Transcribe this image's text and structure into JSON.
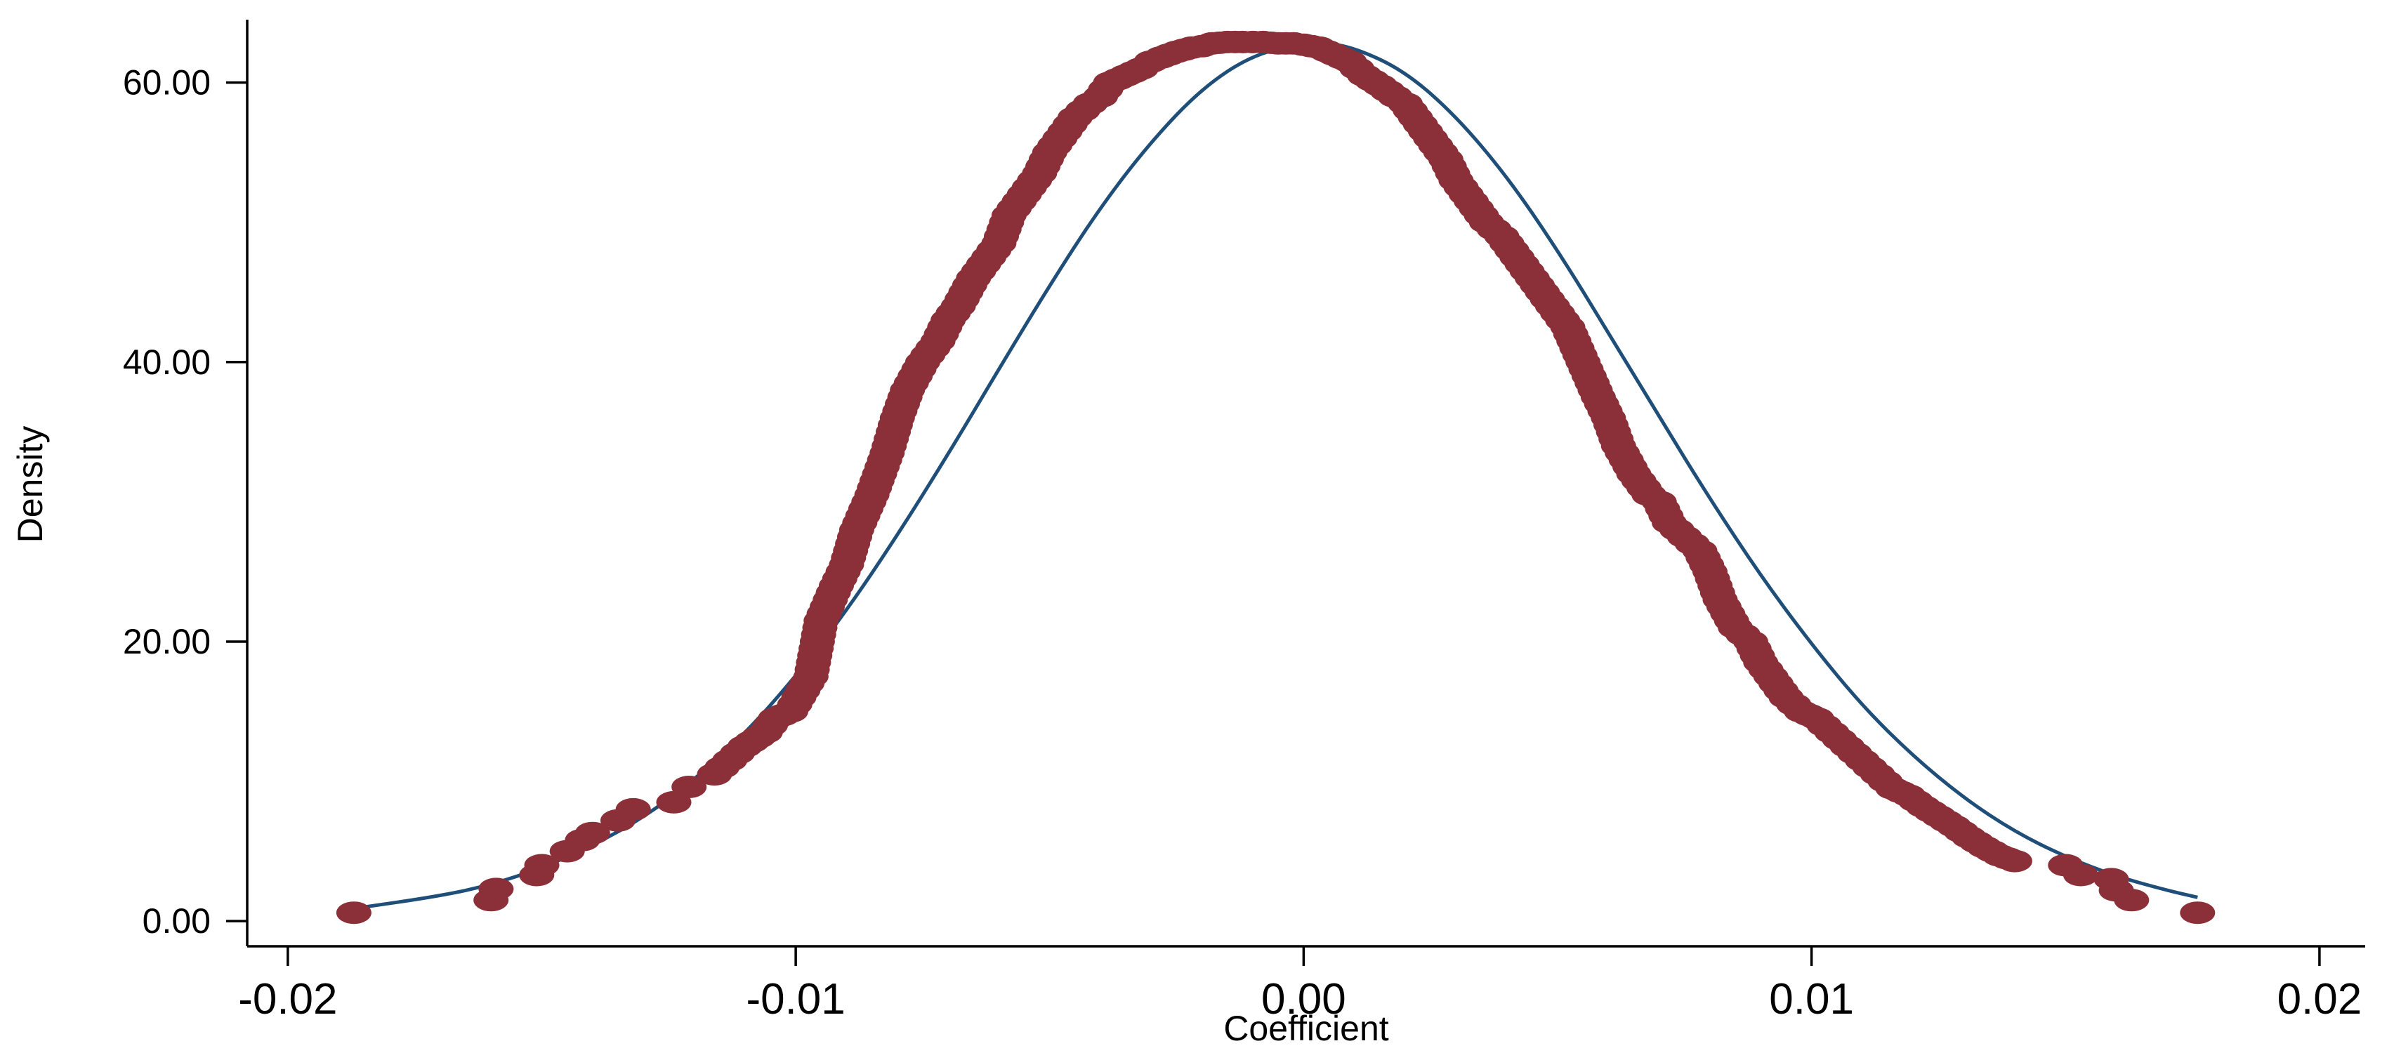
{
  "chart_data": {
    "type": "scatter",
    "xlabel": "Coefficient",
    "ylabel": "Density",
    "xlim": [
      -0.0208,
      0.0209
    ],
    "ylim": [
      -1.8,
      64.5
    ],
    "xticks": [
      -0.02,
      -0.01,
      0.0,
      0.01,
      0.02
    ],
    "xtick_labels": [
      "-0.02",
      "-0.01",
      "0.00",
      "0.01",
      "0.02"
    ],
    "yticks": [
      0,
      20,
      40,
      60
    ],
    "ytick_labels": [
      "0.00",
      "20.00",
      "40.00",
      "60.00"
    ],
    "colors": {
      "density_points": "#8B3038",
      "normal_curve": "#1F4E79"
    },
    "grid": false,
    "legend": "none",
    "series": [
      {
        "style": "markers",
        "x": [
          -0.0187,
          -0.016,
          -0.0159,
          -0.0151,
          -0.015,
          -0.0145,
          -0.0142,
          -0.014,
          -0.0135,
          -0.0132,
          -0.0124,
          -0.0121,
          -0.0116,
          -0.0113,
          -0.011,
          -0.0106,
          -0.0104,
          -0.0101,
          -0.0097,
          -0.0095,
          -0.0092,
          -0.009,
          -0.0088,
          -0.0085,
          -0.0082,
          -0.008,
          -0.0078,
          -0.0075,
          -0.0072,
          -0.007,
          -0.0068,
          -0.0065,
          -0.0062,
          -0.006,
          -0.0058,
          -0.0055,
          -0.0052,
          -0.005,
          -0.0048,
          -0.0045,
          -0.0042,
          -0.004,
          -0.0038,
          -0.0035,
          -0.0032,
          -0.003,
          -0.0028,
          -0.0025,
          -0.0022,
          -0.002,
          -0.0018,
          -0.0015,
          -0.0012,
          -0.001,
          -0.0008,
          -0.0005,
          -0.0002,
          0.0,
          0.0003,
          0.0006,
          0.0009,
          0.0012,
          0.0015,
          0.0018,
          0.002,
          0.0022,
          0.0025,
          0.0028,
          0.003,
          0.0033,
          0.0036,
          0.0039,
          0.0042,
          0.0045,
          0.0048,
          0.005,
          0.0052,
          0.0055,
          0.0058,
          0.006,
          0.0062,
          0.0065,
          0.0068,
          0.007,
          0.0072,
          0.0075,
          0.0078,
          0.008,
          0.0082,
          0.0085,
          0.0088,
          0.009,
          0.0092,
          0.0095,
          0.0098,
          0.0101,
          0.0104,
          0.0107,
          0.011,
          0.0113,
          0.0116,
          0.0119,
          0.0122,
          0.0125,
          0.0128,
          0.0131,
          0.0134,
          0.0137,
          0.014,
          0.015,
          0.0153,
          0.0159,
          0.016,
          0.0163,
          0.0176
        ],
        "y": [
          0.6,
          1.5,
          2.3,
          3.3,
          4.0,
          5.0,
          5.8,
          6.3,
          7.2,
          8.0,
          8.5,
          9.6,
          10.5,
          11.5,
          12.5,
          13.5,
          14.5,
          15.0,
          17.5,
          21.5,
          24.0,
          25.5,
          28.0,
          30.5,
          33.5,
          36.0,
          38.0,
          40.0,
          41.5,
          43.0,
          44.0,
          46.0,
          47.5,
          48.5,
          50.5,
          52.0,
          53.5,
          55.0,
          56.0,
          57.5,
          58.5,
          59.0,
          60.0,
          60.5,
          61.0,
          61.5,
          61.8,
          62.2,
          62.5,
          62.6,
          62.8,
          62.9,
          62.9,
          62.9,
          62.9,
          62.8,
          62.8,
          62.7,
          62.5,
          62.0,
          61.5,
          60.5,
          59.8,
          59.0,
          58.5,
          57.5,
          56.0,
          54.5,
          53.0,
          51.5,
          50.0,
          49.0,
          47.5,
          46.0,
          44.5,
          43.5,
          42.5,
          40.0,
          37.5,
          36.0,
          34.0,
          32.0,
          30.5,
          30.0,
          28.5,
          27.5,
          26.5,
          25.0,
          23.0,
          21.0,
          20.0,
          18.5,
          17.5,
          16.0,
          15.0,
          14.5,
          13.5,
          12.5,
          11.5,
          10.5,
          9.5,
          9.0,
          8.2,
          7.5,
          6.8,
          6.0,
          5.3,
          4.7,
          4.3,
          4.0,
          3.3,
          3.0,
          2.2,
          1.5,
          0.6
        ]
      },
      {
        "style": "line",
        "x": [
          -0.0187,
          -0.017,
          -0.016,
          -0.015,
          -0.014,
          -0.013,
          -0.012,
          -0.011,
          -0.01,
          -0.009,
          -0.008,
          -0.007,
          -0.006,
          -0.005,
          -0.004,
          -0.003,
          -0.002,
          -0.001,
          0.0,
          0.0003,
          0.001,
          0.002,
          0.003,
          0.004,
          0.005,
          0.006,
          0.007,
          0.008,
          0.009,
          0.01,
          0.011,
          0.012,
          0.013,
          0.014,
          0.015,
          0.016,
          0.017,
          0.0176
        ],
        "y": [
          0.9,
          1.8,
          2.6,
          3.8,
          5.4,
          7.4,
          10.1,
          13.4,
          17.5,
          22.2,
          27.6,
          33.4,
          39.5,
          45.5,
          51.1,
          55.8,
          59.6,
          62.0,
          62.8,
          62.9,
          62.5,
          60.8,
          57.6,
          53.3,
          48.0,
          42.1,
          36.1,
          30.2,
          24.7,
          19.8,
          15.4,
          11.8,
          8.8,
          6.4,
          4.6,
          3.2,
          2.2,
          1.7
        ]
      }
    ]
  }
}
